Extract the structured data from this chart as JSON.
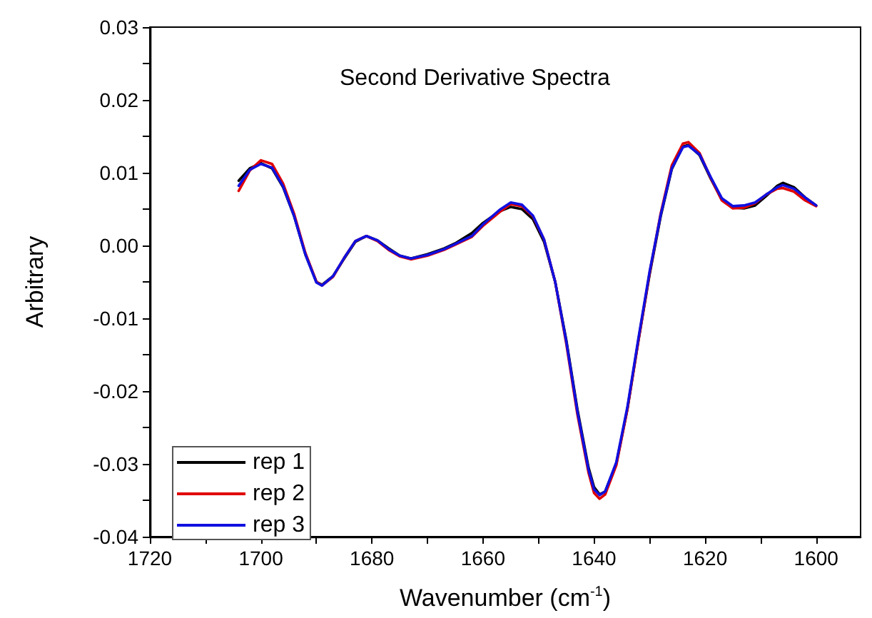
{
  "chart_data": {
    "type": "line",
    "title": "Second Derivative Spectra",
    "xlabel": "Wavenumber (cm$^{-1}$)",
    "ylabel": "Arbitrary",
    "x": [
      1704,
      1702,
      1700,
      1698,
      1696,
      1694,
      1692,
      1690,
      1689,
      1687,
      1685,
      1683,
      1681,
      1679,
      1677,
      1675,
      1673,
      1670,
      1667,
      1665,
      1662,
      1660,
      1657,
      1655,
      1653,
      1651,
      1649,
      1647,
      1645,
      1643,
      1641,
      1640,
      1639,
      1638,
      1636,
      1634,
      1632,
      1630,
      1628,
      1626,
      1624,
      1623,
      1621,
      1619,
      1617,
      1615,
      1613,
      1611,
      1609,
      1607,
      1606,
      1604,
      1602,
      1600
    ],
    "series": [
      {
        "name": "rep 1",
        "color": "#000000",
        "values": [
          0.0089,
          0.0106,
          0.0113,
          0.0106,
          0.008,
          0.004,
          -0.0012,
          -0.005,
          -0.0054,
          -0.0042,
          -0.0018,
          0.0005,
          0.0013,
          0.0007,
          -0.0004,
          -0.0014,
          -0.0018,
          -0.0012,
          -0.0004,
          0.0003,
          0.0017,
          0.0031,
          0.0047,
          0.0053,
          0.005,
          0.0036,
          0.0005,
          -0.005,
          -0.013,
          -0.0225,
          -0.0305,
          -0.0332,
          -0.0342,
          -0.0338,
          -0.03,
          -0.0225,
          -0.013,
          -0.004,
          0.004,
          0.0105,
          0.0136,
          0.0138,
          0.0124,
          0.0092,
          0.0063,
          0.0052,
          0.0051,
          0.0055,
          0.0068,
          0.0082,
          0.0086,
          0.008,
          0.0066,
          0.0055
        ]
      },
      {
        "name": "rep 2",
        "color": "#e00000",
        "values": [
          0.0075,
          0.0103,
          0.0117,
          0.0112,
          0.0085,
          0.0043,
          -0.001,
          -0.005,
          -0.0055,
          -0.0043,
          -0.0017,
          0.0006,
          0.0013,
          0.0006,
          -0.0006,
          -0.0015,
          -0.0019,
          -0.0014,
          -0.0006,
          0.0001,
          0.0012,
          0.0027,
          0.0046,
          0.0057,
          0.0054,
          0.004,
          0.0008,
          -0.005,
          -0.0135,
          -0.0232,
          -0.0312,
          -0.034,
          -0.0348,
          -0.0342,
          -0.0302,
          -0.0225,
          -0.013,
          -0.0038,
          0.0044,
          0.011,
          0.014,
          0.0142,
          0.0127,
          0.0093,
          0.0062,
          0.0051,
          0.0052,
          0.0058,
          0.007,
          0.0078,
          0.0079,
          0.0074,
          0.0062,
          0.0054
        ]
      },
      {
        "name": "rep 3",
        "color": "#1010e0",
        "values": [
          0.0082,
          0.0104,
          0.0112,
          0.0107,
          0.0081,
          0.004,
          -0.0012,
          -0.0051,
          -0.0055,
          -0.0042,
          -0.0017,
          0.0006,
          0.0013,
          0.0007,
          -0.0005,
          -0.0014,
          -0.0018,
          -0.0013,
          -0.0005,
          0.0002,
          0.0013,
          0.0029,
          0.0049,
          0.0059,
          0.0056,
          0.0041,
          0.0008,
          -0.005,
          -0.0132,
          -0.0228,
          -0.0308,
          -0.0335,
          -0.0343,
          -0.0338,
          -0.0298,
          -0.0222,
          -0.0127,
          -0.0036,
          0.0042,
          0.0106,
          0.0135,
          0.0137,
          0.0125,
          0.0094,
          0.0065,
          0.0054,
          0.0055,
          0.0059,
          0.007,
          0.008,
          0.0083,
          0.0078,
          0.0066,
          0.0055
        ]
      }
    ],
    "xlim": [
      1720,
      1592
    ],
    "xticks": [
      1720,
      1700,
      1680,
      1660,
      1640,
      1620,
      1600
    ],
    "ylim": [
      -0.04,
      0.03
    ],
    "yticks": [
      {
        "value": -0.04,
        "label": "-0.04"
      },
      {
        "value": -0.03,
        "label": "-0.03"
      },
      {
        "value": -0.02,
        "label": "-0.02"
      },
      {
        "value": -0.01,
        "label": "-0.01"
      },
      {
        "value": 0,
        "label": "0.00"
      },
      {
        "value": 0.01,
        "label": "0.01"
      },
      {
        "value": 0.02,
        "label": "0.02"
      },
      {
        "value": 0.03,
        "label": "0.03"
      }
    ],
    "grid": false,
    "legend": "bottom left",
    "marker": "none",
    "line_style": "solid"
  }
}
